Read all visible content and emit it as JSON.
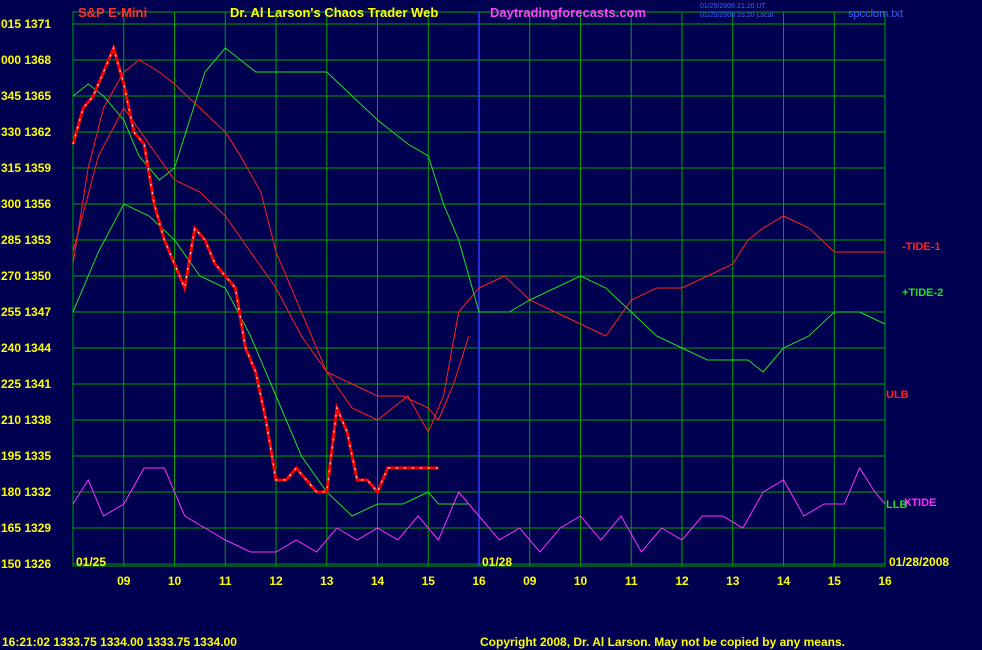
{
  "header": {
    "instrument": "S&P E-Mini",
    "title": "Dr. Al Larson's Chaos Trader Web",
    "site": "Daytradingforecasts.com",
    "timestamp_1": "01/25/2008 21:20 UT",
    "timestamp_2": "01/25/2008 15:20 Local",
    "filename": "spcclom.txt"
  },
  "footer": {
    "quote": "16:21:02  1333.75  1334.00  1333.75  1334.00",
    "copyright": "Copyright 2008, Dr. Al Larson. May not be copied by any means."
  },
  "colors": {
    "background": "#000050",
    "grid": "#00a000",
    "price_up": "#ffffff",
    "price_down": "#ff0000",
    "tide_1": "#ff2020",
    "tide_2": "#20e020",
    "ulb": "#ff2020",
    "llb": "#20e020",
    "xtide": "#ff30ff",
    "blue_ma": "#2020ff",
    "yellow_ma": "#ffff40",
    "axis_text": "#ffff00"
  },
  "chart_data": {
    "type": "line",
    "y_axis_left_codes": [
      "015",
      "000",
      "345",
      "330",
      "315",
      "300",
      "285",
      "270",
      "255",
      "240",
      "225",
      "210",
      "195",
      "180",
      "165",
      "150"
    ],
    "y_axis_prices": [
      1371,
      1368,
      1365,
      1362,
      1359,
      1356,
      1353,
      1350,
      1347,
      1344,
      1341,
      1338,
      1335,
      1332,
      1329,
      1326
    ],
    "ylim": [
      1326,
      1371
    ],
    "x_ticks": [
      "09",
      "10",
      "11",
      "12",
      "13",
      "14",
      "15",
      "16",
      "09",
      "10",
      "11",
      "12",
      "13",
      "14",
      "15",
      "16"
    ],
    "date_labels": {
      "start": "01/25",
      "mid": "01/28",
      "end": "01/28/2008"
    },
    "legend": [
      {
        "label": "-TIDE-1",
        "color": "#ff2020"
      },
      {
        "label": "+TIDE-2",
        "color": "#20e020"
      },
      {
        "label": "ULB",
        "color": "#ff2020"
      },
      {
        "label": "LLB",
        "color": "#20e020"
      },
      {
        "label": "XTIDE",
        "color": "#ff30ff"
      }
    ],
    "series": [
      {
        "name": "-TIDE-1",
        "x": [
          0,
          0.3,
          0.6,
          1.0,
          1.3,
          1.7,
          2.0,
          2.5,
          3.0,
          3.3,
          3.7,
          4.0,
          4.5,
          5.0,
          5.5,
          6.0,
          6.3,
          6.6,
          7.0,
          7.3,
          7.6,
          8.0,
          8.5,
          9.0,
          9.5,
          10.0,
          10.5,
          11.0,
          11.5,
          12.0,
          12.5,
          13.0,
          13.3,
          13.6,
          14.0,
          14.5,
          15.0,
          15.5,
          16.0
        ],
        "values": [
          1351,
          1359,
          1364,
          1367,
          1368,
          1367,
          1366,
          1364,
          1362,
          1360,
          1357,
          1352,
          1347,
          1342,
          1339,
          1338,
          1339,
          1340,
          1337,
          1340,
          1347,
          1349,
          1350,
          1348,
          1347,
          1346,
          1345,
          1348,
          1349,
          1349,
          1350,
          1351,
          1353,
          1354,
          1355,
          1354,
          1352,
          1352,
          1352
        ]
      },
      {
        "name": "+TIDE-2",
        "x": [
          0,
          0.3,
          0.6,
          1.0,
          1.3,
          1.7,
          2.0,
          2.3,
          2.6,
          3.0,
          3.3,
          3.6,
          4.0,
          4.5,
          5.0,
          5.5,
          6.0,
          6.3,
          6.6,
          7.0,
          7.3,
          7.6,
          8.0,
          8.3,
          8.6,
          9.0,
          9.5,
          10.0,
          10.5,
          11.0,
          11.5,
          12.0,
          12.5,
          13.0,
          13.3,
          13.6,
          14.0,
          14.5,
          15.0,
          15.5,
          16.0
        ],
        "values": [
          1365,
          1366,
          1365,
          1363,
          1360,
          1358,
          1359,
          1363,
          1367,
          1369,
          1368,
          1367,
          1367,
          1367,
          1367,
          1365,
          1363,
          1362,
          1361,
          1360,
          1356,
          1353,
          1347,
          1347,
          1347,
          1348,
          1349,
          1350,
          1349,
          1347,
          1345,
          1344,
          1343,
          1343,
          1343,
          1342,
          1344,
          1345,
          1347,
          1347,
          1346
        ]
      },
      {
        "name": "ULB",
        "x": [
          0,
          0.5,
          1.0,
          1.5,
          2.0,
          2.5,
          3.0,
          3.5,
          4.0,
          4.5,
          5.0,
          5.5,
          6.0,
          6.5,
          7.0,
          7.2,
          7.5,
          7.8
        ],
        "values": [
          1352,
          1360,
          1364,
          1361,
          1358,
          1357,
          1355,
          1352,
          1349,
          1345,
          1342,
          1341,
          1340,
          1340,
          1339,
          1338,
          1341,
          1345
        ]
      },
      {
        "name": "LLB",
        "x": [
          0,
          0.5,
          1.0,
          1.5,
          2.0,
          2.5,
          3.0,
          3.5,
          4.0,
          4.5,
          5.0,
          5.5,
          6.0,
          6.5,
          7.0,
          7.2,
          7.5,
          7.8
        ],
        "values": [
          1347,
          1352,
          1356,
          1355,
          1353,
          1350,
          1349,
          1345,
          1340,
          1335,
          1332,
          1330,
          1331,
          1331,
          1332,
          1331,
          1331,
          1331
        ]
      },
      {
        "name": "XTIDE",
        "x": [
          0,
          0.3,
          0.6,
          1.0,
          1.4,
          1.8,
          2.2,
          2.6,
          3.0,
          3.5,
          4.0,
          4.4,
          4.8,
          5.2,
          5.6,
          6.0,
          6.4,
          6.8,
          7.2,
          7.6,
          8.0,
          8.4,
          8.8,
          9.2,
          9.6,
          10.0,
          10.4,
          10.8,
          11.2,
          11.6,
          12.0,
          12.4,
          12.8,
          13.2,
          13.6,
          14.0,
          14.4,
          14.8,
          15.2,
          15.5,
          15.8,
          16.0
        ],
        "values": [
          1331,
          1333,
          1330,
          1331,
          1334,
          1334,
          1330,
          1329,
          1328,
          1327,
          1327,
          1328,
          1327,
          1329,
          1328,
          1329,
          1328,
          1330,
          1328,
          1332,
          1330,
          1328,
          1329,
          1327,
          1329,
          1330,
          1328,
          1330,
          1327,
          1329,
          1328,
          1330,
          1330,
          1329,
          1332,
          1333,
          1330,
          1331,
          1331,
          1334,
          1332,
          1331
        ]
      },
      {
        "name": "S&P E-Mini",
        "x": [
          0,
          0.2,
          0.4,
          0.6,
          0.8,
          1.0,
          1.2,
          1.4,
          1.6,
          1.8,
          2.0,
          2.2,
          2.4,
          2.6,
          2.8,
          3.0,
          3.2,
          3.4,
          3.6,
          3.8,
          4.0,
          4.2,
          4.4,
          4.6,
          4.8,
          5.0,
          5.2,
          5.4,
          5.6,
          5.8,
          6.0,
          6.2,
          6.4,
          6.6,
          6.8,
          7.0,
          7.2
        ],
        "values": [
          1361,
          1364,
          1365,
          1367,
          1369,
          1366,
          1362,
          1361,
          1356,
          1353,
          1351,
          1349,
          1354,
          1353,
          1351,
          1350,
          1349,
          1344,
          1342,
          1338,
          1333,
          1333,
          1334,
          1333,
          1332,
          1332,
          1339,
          1337,
          1333,
          1333,
          1332,
          1334,
          1334,
          1334,
          1334,
          1334,
          1334
        ]
      }
    ]
  }
}
